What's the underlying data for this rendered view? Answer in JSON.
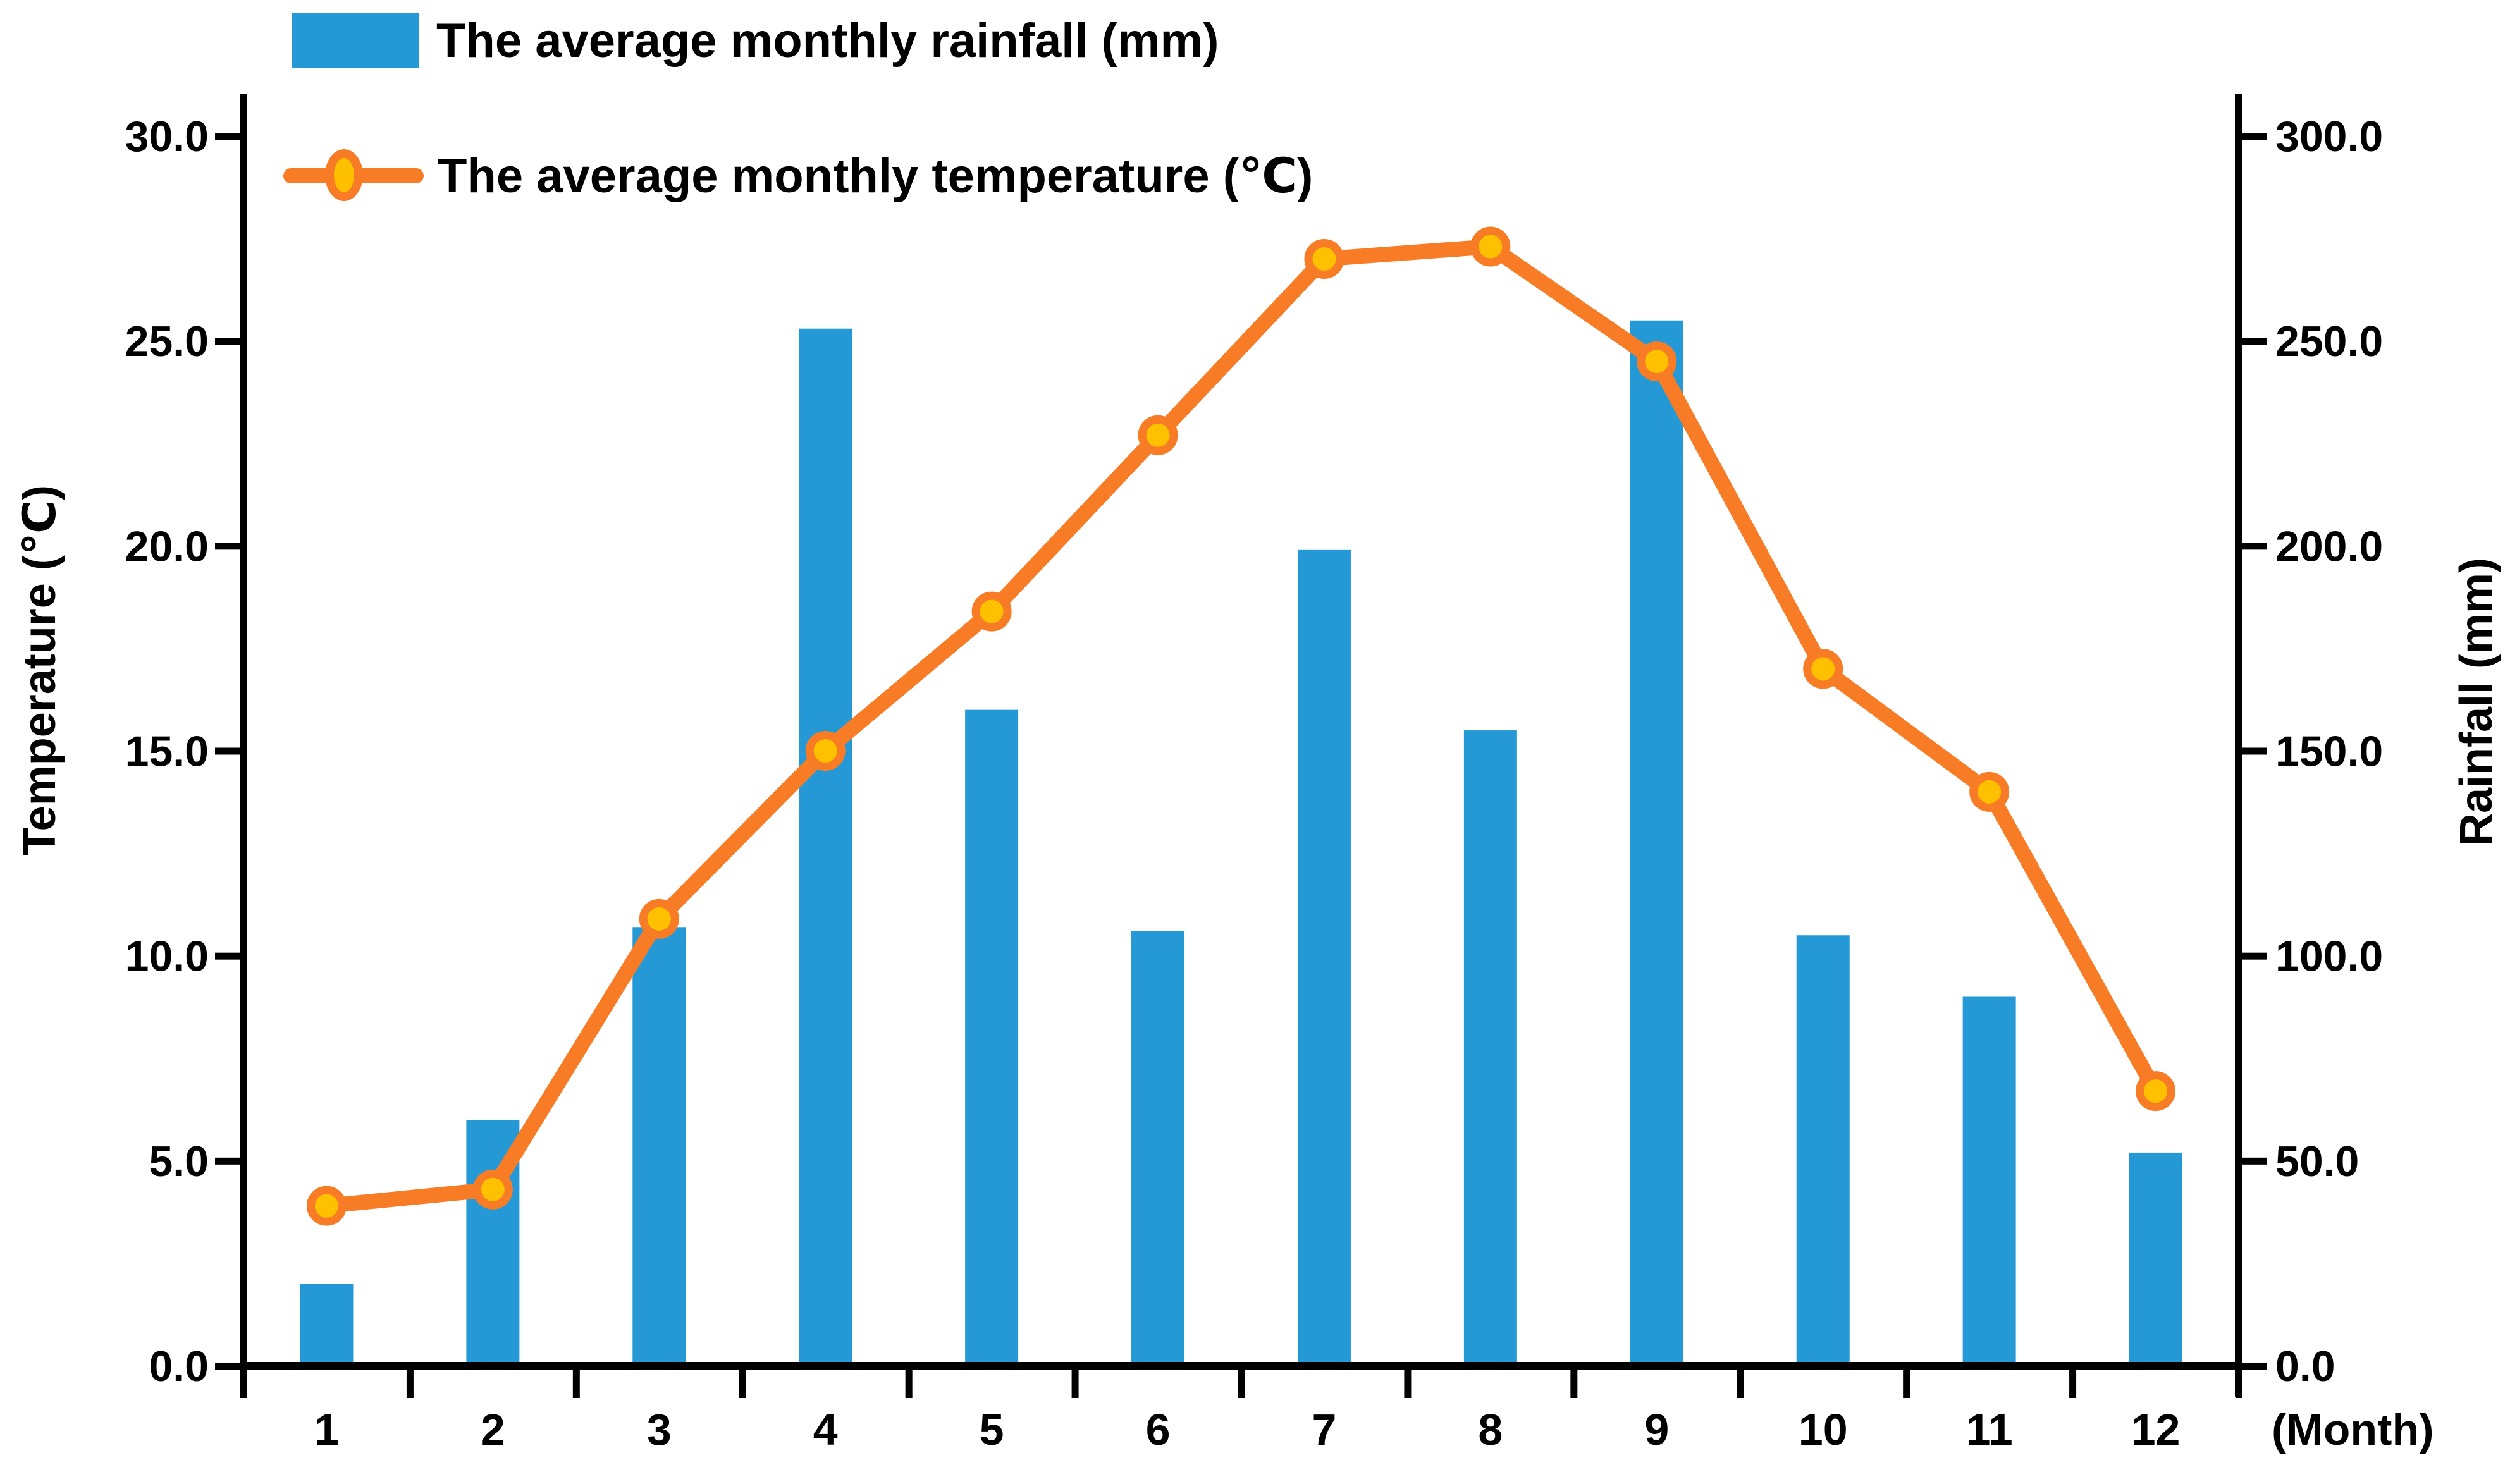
{
  "legend": {
    "rainfall_label": "The average monthly rainfall (mm)",
    "temperature_label": "The average monthly temperature (℃)"
  },
  "axes": {
    "left": {
      "title": "Temperature (℃)"
    },
    "right": {
      "title": "Rainfall (mm)"
    },
    "bottom": {
      "unit_label": "(Month)"
    }
  },
  "colors": {
    "bar": "#2499D6",
    "line": "#F87C26",
    "marker_fill": "#FFC000",
    "marker_ring": "#F87C26",
    "axis": "#000000",
    "text": "#000000"
  },
  "chart_data": {
    "type": "combo-bar-line",
    "categories": [
      "1",
      "2",
      "3",
      "4",
      "5",
      "6",
      "7",
      "8",
      "9",
      "10",
      "11",
      "12"
    ],
    "x_axis_unit": "(Month)",
    "series": [
      {
        "name": "The average monthly rainfall (mm)",
        "type": "bar",
        "axis": "right",
        "values": [
          20,
          60,
          107,
          253,
          160,
          106,
          199,
          155,
          255,
          105,
          90,
          52
        ]
      },
      {
        "name": "The average monthly temperature (℃)",
        "type": "line",
        "axis": "left",
        "values": [
          3.9,
          4.3,
          10.9,
          15.0,
          18.4,
          22.7,
          27.0,
          27.3,
          24.5,
          17.0,
          14.0,
          6.7
        ]
      }
    ],
    "y_left": {
      "title": "Temperature (℃)",
      "min": 0,
      "max": 30,
      "tick_labels": [
        "0.0",
        "5.0",
        "10.0",
        "15.0",
        "20.0",
        "25.0",
        "30.0"
      ]
    },
    "y_right": {
      "title": "Rainfall (mm)",
      "min": 0,
      "max": 300,
      "tick_labels": [
        "0.0",
        "50.0",
        "100.0",
        "150.0",
        "200.0",
        "250.0",
        "300.0"
      ]
    },
    "grid": false,
    "legend_position": "top-left"
  }
}
